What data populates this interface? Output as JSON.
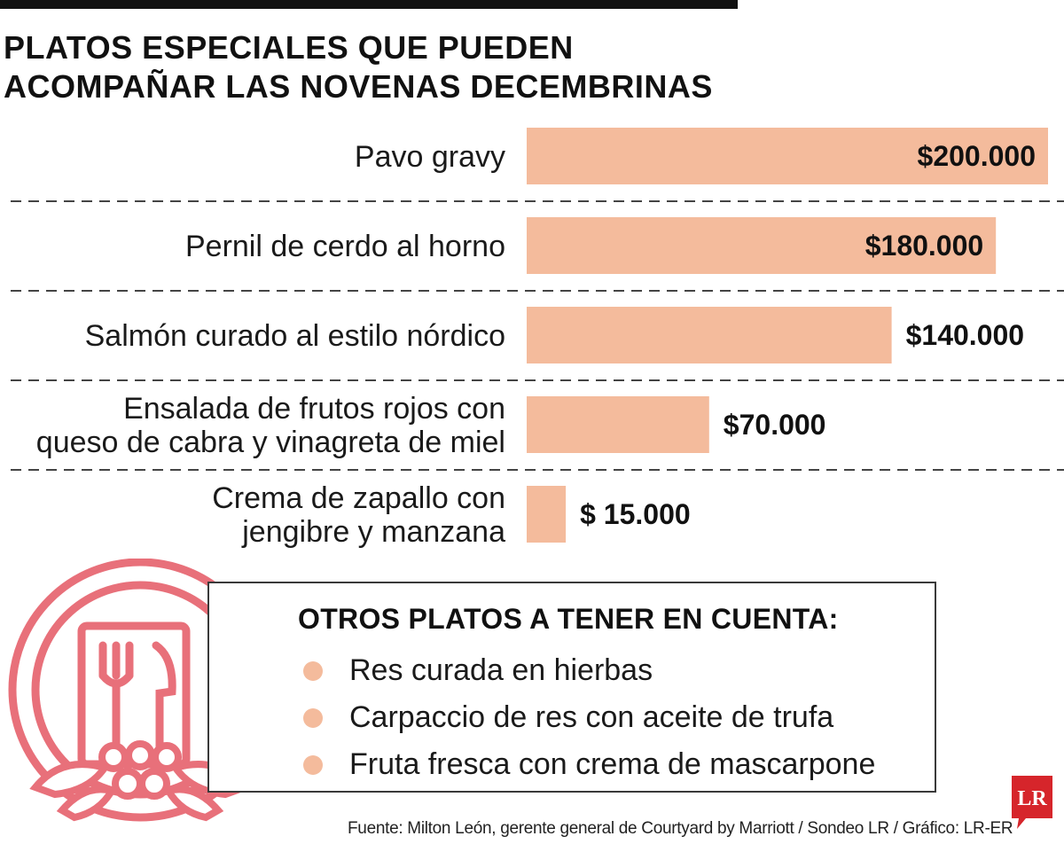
{
  "title": {
    "line1": "PLATOS ESPECIALES QUE PUEDEN",
    "line2": "ACOMPAÑAR LAS NOVENAS DECEMBRINAS"
  },
  "chart_data": {
    "type": "bar",
    "orientation": "horizontal",
    "title": "PLATOS ESPECIALES QUE PUEDEN ACOMPAÑAR LAS NOVENAS DECEMBRINAS",
    "xlabel": "",
    "ylabel": "",
    "xlim": [
      0,
      200000
    ],
    "categories": [
      [
        "Pavo gravy"
      ],
      [
        "Pernil de cerdo al horno"
      ],
      [
        "Salmón curado al estilo nórdico"
      ],
      [
        "Ensalada de frutos rojos con",
        "queso de cabra y vinagreta de miel"
      ],
      [
        "Crema de zapallo con",
        "jengibre y manzana"
      ]
    ],
    "values": [
      200000,
      180000,
      140000,
      70000,
      15000
    ],
    "value_labels": [
      "$200.000",
      "$180.000",
      "$140.000",
      "$70.000",
      "$ 15.000"
    ],
    "bar_color": "#f4bb9c"
  },
  "others": {
    "title": "OTROS PLATOS A TENER EN CUENTA:",
    "items": [
      "Res curada en hierbas",
      "Carpaccio de res con aceite de trufa",
      "Fruta fresca con crema de mascarpone"
    ]
  },
  "source": "Fuente: Milton León, gerente general de Courtyard by Marriott / Sondeo LR / Gráfico: LR-ER",
  "logo": {
    "text": "LR",
    "color": "#d6252b"
  },
  "colors": {
    "accent": "#f4bb9c",
    "plate": "#e8707a",
    "text": "#111111"
  },
  "icons": {
    "decoration": "plate-with-cutlery-icon"
  }
}
